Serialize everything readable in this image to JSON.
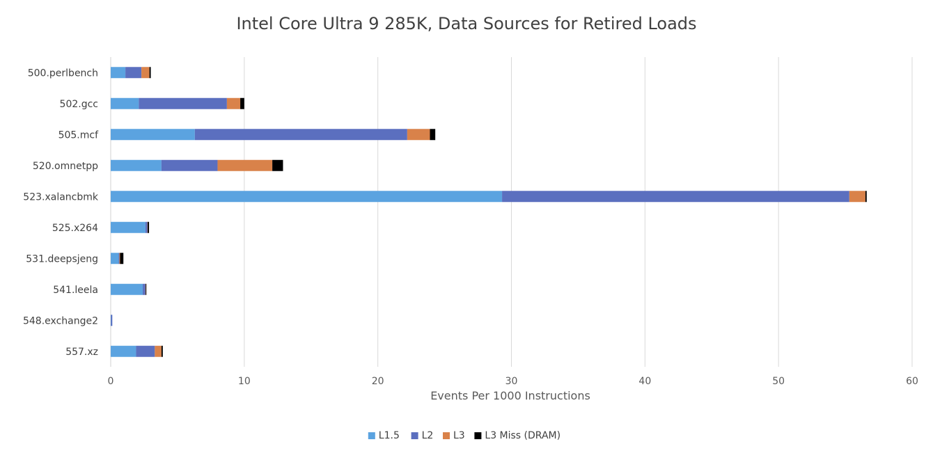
{
  "chart_data": {
    "type": "bar",
    "orientation": "horizontal",
    "stacked": true,
    "title": "Intel Core Ultra 9 285K, Data Sources for Retired Loads",
    "xlabel": "Events Per 1000 Instructions",
    "ylabel": "",
    "xlim": [
      0,
      60
    ],
    "xticks": [
      0,
      10,
      20,
      30,
      40,
      50,
      60
    ],
    "grid": true,
    "legend_position": "bottom",
    "categories": [
      "500.perlbench",
      "502.gcc",
      "505.mcf",
      "520.omnetpp",
      "523.xalancbmk",
      "525.x264",
      "531.deepsjeng",
      "541.leela",
      "548.exchange2",
      "557.xz"
    ],
    "series": [
      {
        "name": "L1.5",
        "color": "#5ba3e0",
        "values": [
          1.1,
          2.1,
          6.3,
          3.8,
          29.3,
          2.6,
          0.6,
          2.4,
          0.02,
          1.9
        ]
      },
      {
        "name": "L2",
        "color": "#5b6fbf",
        "values": [
          1.2,
          6.6,
          15.9,
          4.2,
          26.0,
          0.15,
          0.05,
          0.2,
          0.1,
          1.4
        ]
      },
      {
        "name": "L3",
        "color": "#d9824a",
        "values": [
          0.6,
          1.0,
          1.7,
          4.1,
          1.2,
          0.02,
          0.05,
          0.02,
          0.0,
          0.5
        ]
      },
      {
        "name": "L3 Miss (DRAM)",
        "color": "#000000",
        "values": [
          0.1,
          0.3,
          0.4,
          0.8,
          0.1,
          0.1,
          0.25,
          0.05,
          0.0,
          0.1
        ]
      }
    ]
  }
}
